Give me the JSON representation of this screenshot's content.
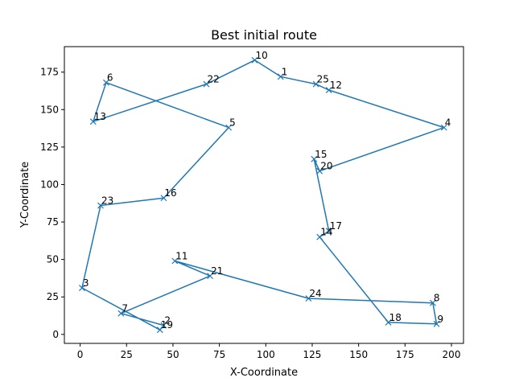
{
  "chart_data": {
    "type": "line",
    "title": "Best initial route",
    "xlabel": "X-Coordinate",
    "ylabel": "Y-Coordinate",
    "xlim": [
      -8.5,
      206.5
    ],
    "ylim": [
      -6,
      192
    ],
    "xticks": [
      0,
      25,
      50,
      75,
      100,
      125,
      150,
      175,
      200
    ],
    "yticks": [
      0,
      25,
      50,
      75,
      100,
      125,
      150,
      175
    ],
    "grid": false,
    "color": "#1f77b4",
    "marker": "x",
    "route": [
      {
        "label": "10",
        "x": 94,
        "y": 183
      },
      {
        "label": "1",
        "x": 108,
        "y": 172
      },
      {
        "label": "25",
        "x": 127,
        "y": 167
      },
      {
        "label": "12",
        "x": 134,
        "y": 163
      },
      {
        "label": "4",
        "x": 196,
        "y": 138
      },
      {
        "label": "20",
        "x": 129,
        "y": 109
      },
      {
        "label": "15",
        "x": 126,
        "y": 117
      },
      {
        "label": "17",
        "x": 134,
        "y": 69
      },
      {
        "label": "14",
        "x": 129,
        "y": 65
      },
      {
        "label": "18",
        "x": 166,
        "y": 8
      },
      {
        "label": "9",
        "x": 192,
        "y": 7
      },
      {
        "label": "8",
        "x": 190,
        "y": 21
      },
      {
        "label": "24",
        "x": 123,
        "y": 24
      },
      {
        "label": "11",
        "x": 51,
        "y": 49
      },
      {
        "label": "21",
        "x": 70,
        "y": 39
      },
      {
        "label": "7",
        "x": 22,
        "y": 14
      },
      {
        "label": "2",
        "x": 45,
        "y": 6
      },
      {
        "label": "19",
        "x": 43,
        "y": 3
      },
      {
        "label": "3",
        "x": 1,
        "y": 31
      },
      {
        "label": "23",
        "x": 11,
        "y": 86
      },
      {
        "label": "16",
        "x": 45,
        "y": 91
      },
      {
        "label": "5",
        "x": 80,
        "y": 138
      },
      {
        "label": "6",
        "x": 14,
        "y": 168
      },
      {
        "label": "13",
        "x": 7,
        "y": 142
      },
      {
        "label": "22",
        "x": 68,
        "y": 167
      },
      {
        "label": "10",
        "x": 94,
        "y": 183
      }
    ]
  }
}
